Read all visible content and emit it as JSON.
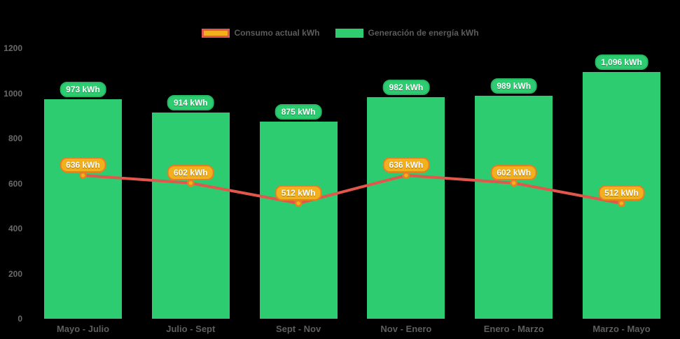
{
  "legend": {
    "items": [
      {
        "label": "Consumo actual kWh"
      },
      {
        "label": "Generación de energía kWh"
      }
    ]
  },
  "chart_data": {
    "type": "bar",
    "subtype": "combo-bar-line",
    "categories": [
      "Mayo - Julio",
      "Julio - Sept",
      "Sept - Nov",
      "Nov - Enero",
      "Enero - Marzo",
      "Marzo - Mayo"
    ],
    "series": [
      {
        "name": "Generación de energía kWh",
        "type": "bar",
        "color": "#2ecc71",
        "values": [
          973,
          914,
          875,
          982,
          989,
          1096
        ],
        "labels": [
          "973 kWh",
          "914 kWh",
          "875 kWh",
          "982 kWh",
          "989 kWh",
          "1,096 kWh"
        ]
      },
      {
        "name": "Consumo actual kWh",
        "type": "line",
        "color": "#e2574c",
        "marker_fill": "#f2b01e",
        "marker_stroke": "#e67e22",
        "values": [
          636,
          602,
          512,
          636,
          602,
          512
        ],
        "labels": [
          "636 kWh",
          "602 kWh",
          "512 kWh",
          "636 kWh",
          "602 kWh",
          "512 kWh"
        ]
      }
    ],
    "ylim": [
      0,
      1200
    ],
    "yticks": [
      0,
      200,
      400,
      600,
      800,
      1000,
      1200
    ],
    "ytick_labels": [
      "0",
      "200",
      "400",
      "600",
      "800",
      "1000",
      "1200"
    ],
    "grid": false,
    "legend_position": "top-center",
    "background": "#000000",
    "colors": {
      "bar_green": "#2ecc71",
      "bar_pill_border": "#26b863",
      "line_red": "#e2574c",
      "marker_gold": "#f2b01e",
      "marker_border_orange": "#e67e22",
      "axis_text_gray": "#6a6a6a"
    }
  }
}
